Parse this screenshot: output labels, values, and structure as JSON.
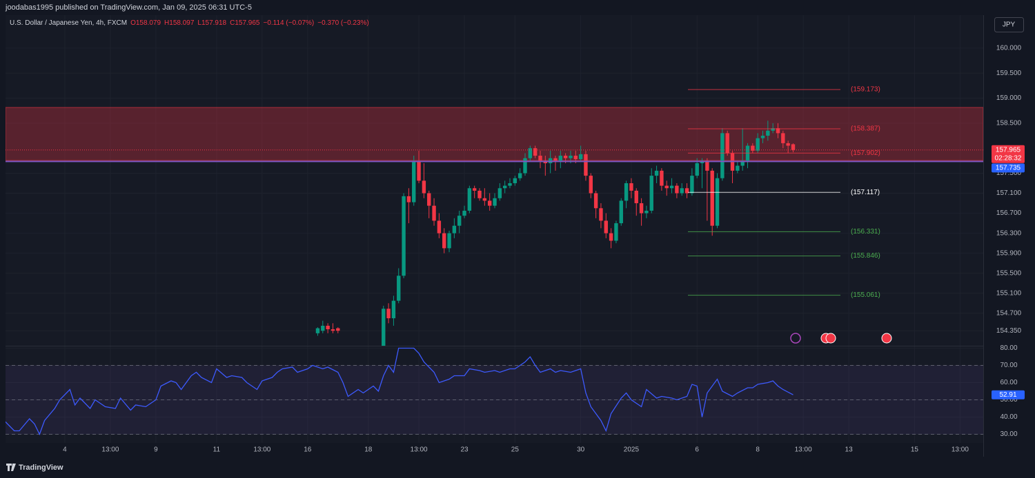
{
  "header": {
    "publisher": "joodabas1995 published on TradingView.com, Jan 09, 2025 06:31 UTC-5",
    "symbol": "U.S. Dollar / Japanese Yen, 4h, FXCM",
    "open": "O158.079",
    "high": "H158.097",
    "low": "L157.918",
    "close": "C157.965",
    "change": "−0.114 (−0.07%)",
    "change_total": "−0.370 (−0.23%)",
    "currency": "JPY"
  },
  "chart_data": [
    {
      "type": "candlestick",
      "up_color": "#089981",
      "down_color": "#f23645",
      "grid": true,
      "xlim": [
        0,
        193
      ],
      "ylim": [
        154.05,
        160.66
      ],
      "xticks": [
        {
          "value": 12,
          "label": "4"
        },
        {
          "value": 21,
          "label": "13:00"
        },
        {
          "value": 30,
          "label": "9"
        },
        {
          "value": 42,
          "label": "11"
        },
        {
          "value": 51,
          "label": "13:00"
        },
        {
          "value": 60,
          "label": "16"
        },
        {
          "value": 72,
          "label": "18"
        },
        {
          "value": 82,
          "label": "13:00"
        },
        {
          "value": 91,
          "label": "23"
        },
        {
          "value": 101,
          "label": "25"
        },
        {
          "value": 114,
          "label": "30"
        },
        {
          "value": 124,
          "label": "2025"
        },
        {
          "value": 137,
          "label": "6"
        },
        {
          "value": 149,
          "label": "8"
        },
        {
          "value": 158,
          "label": "13:00"
        },
        {
          "value": 167,
          "label": "13"
        },
        {
          "value": 180,
          "label": "15"
        },
        {
          "value": 189,
          "label": "13:00"
        }
      ],
      "yticks": [
        {
          "value": 160,
          "label": "160.000"
        },
        {
          "value": 159.5,
          "label": "159.500"
        },
        {
          "value": 159,
          "label": "159.000"
        },
        {
          "value": 158.5,
          "label": "158.500"
        },
        {
          "value": 157.5,
          "label": "157.500"
        },
        {
          "value": 157.1,
          "label": "157.100"
        },
        {
          "value": 156.7,
          "label": "156.700"
        },
        {
          "value": 156.3,
          "label": "156.300"
        },
        {
          "value": 155.9,
          "label": "155.900"
        },
        {
          "value": 155.5,
          "label": "155.500"
        },
        {
          "value": 155.1,
          "label": "155.100"
        },
        {
          "value": 154.7,
          "label": "154.700"
        },
        {
          "value": 154.35,
          "label": "154.350"
        }
      ],
      "zone": {
        "from": 157.755,
        "to": 158.815,
        "color": "#f23645"
      },
      "support": {
        "value": 157.735,
        "color": "#7e57c2",
        "tag_color": "#2962ff"
      },
      "countdown": "02:28:32",
      "levels": [
        {
          "value": 159.173,
          "label": "(159.173)",
          "color": "#f23645"
        },
        {
          "value": 158.387,
          "label": "(158.387)",
          "color": "#f23645"
        },
        {
          "value": 157.902,
          "label": "(157.902)",
          "color": "#f23645"
        },
        {
          "value": 157.117,
          "label": "(157.117)",
          "color": "#ffffff"
        },
        {
          "value": 156.331,
          "label": "(156.331)",
          "color": "#4caf50"
        },
        {
          "value": 155.846,
          "label": "(155.846)",
          "color": "#4caf50"
        },
        {
          "value": 155.061,
          "label": "(155.061)",
          "color": "#4caf50"
        }
      ],
      "candles": [
        [
          62,
          154.3,
          154.42,
          154.25,
          154.4
        ],
        [
          63,
          154.35,
          154.55,
          154.3,
          154.45
        ],
        [
          64,
          154.45,
          154.5,
          154.3,
          154.38
        ],
        [
          65,
          154.38,
          154.5,
          154.3,
          154.35
        ],
        [
          66,
          154.4,
          154.42,
          154.3,
          154.35
        ],
        [
          75,
          153.95,
          154.85,
          153.9,
          154.79
        ],
        [
          76,
          154.79,
          154.9,
          154.5,
          154.6
        ],
        [
          77,
          154.6,
          155.05,
          154.45,
          154.95
        ],
        [
          78,
          154.95,
          155.6,
          154.9,
          155.45
        ],
        [
          79,
          155.45,
          157.1,
          155.4,
          157.04
        ],
        [
          80,
          157.04,
          157.2,
          156.5,
          156.92
        ],
        [
          81,
          156.92,
          157.85,
          156.85,
          157.73
        ],
        [
          82,
          157.73,
          157.95,
          157.3,
          157.35
        ],
        [
          83,
          157.35,
          157.7,
          157.0,
          157.1
        ],
        [
          84,
          157.1,
          157.15,
          156.6,
          156.85
        ],
        [
          85,
          156.85,
          157.0,
          156.45,
          156.55
        ],
        [
          86,
          156.55,
          156.7,
          156.2,
          156.3
        ],
        [
          87,
          156.3,
          156.4,
          155.9,
          156.0
        ],
        [
          88,
          156.0,
          156.35,
          155.92,
          156.3
        ],
        [
          89,
          156.3,
          156.6,
          156.2,
          156.45
        ],
        [
          90,
          156.45,
          156.75,
          156.3,
          156.65
        ],
        [
          91,
          156.65,
          156.85,
          156.6,
          156.75
        ],
        [
          92,
          156.75,
          157.25,
          156.7,
          157.2
        ],
        [
          93,
          157.2,
          157.25,
          157.0,
          157.15
        ],
        [
          94,
          157.15,
          157.2,
          156.95,
          157.0
        ],
        [
          95,
          157.0,
          157.2,
          156.85,
          156.95
        ],
        [
          96,
          156.95,
          157.1,
          156.75,
          156.85
        ],
        [
          97,
          156.85,
          157.1,
          156.8,
          157.0
        ],
        [
          98,
          157.0,
          157.3,
          156.95,
          157.2
        ],
        [
          99,
          157.2,
          157.35,
          157.1,
          157.25
        ],
        [
          100,
          157.25,
          157.4,
          157.2,
          157.3
        ],
        [
          101,
          157.3,
          157.45,
          157.25,
          157.4
        ],
        [
          102,
          157.4,
          157.6,
          157.35,
          157.5
        ],
        [
          103,
          157.5,
          157.9,
          157.45,
          157.8
        ],
        [
          104,
          157.8,
          158.05,
          157.75,
          158.0
        ],
        [
          105,
          158.0,
          158.05,
          157.8,
          157.85
        ],
        [
          106,
          157.85,
          157.95,
          157.6,
          157.75
        ],
        [
          107,
          157.75,
          157.85,
          157.45,
          157.7
        ],
        [
          108,
          157.7,
          157.95,
          157.5,
          157.8
        ],
        [
          109,
          157.8,
          157.85,
          157.55,
          157.75
        ],
        [
          110,
          157.75,
          157.95,
          157.6,
          157.85
        ],
        [
          111,
          157.85,
          157.9,
          157.7,
          157.8
        ],
        [
          112,
          157.8,
          157.95,
          157.7,
          157.85
        ],
        [
          113,
          157.85,
          157.95,
          157.7,
          157.78
        ],
        [
          114,
          157.78,
          158.05,
          157.75,
          157.88
        ],
        [
          115,
          157.88,
          157.95,
          157.35,
          157.45
        ],
        [
          116,
          157.45,
          157.5,
          157.0,
          157.1
        ],
        [
          117,
          157.1,
          157.15,
          156.6,
          156.8
        ],
        [
          118,
          156.8,
          156.9,
          156.4,
          156.55
        ],
        [
          119,
          156.55,
          156.7,
          156.2,
          156.3
        ],
        [
          120,
          156.3,
          156.4,
          156.0,
          156.15
        ],
        [
          121,
          156.15,
          156.55,
          156.1,
          156.5
        ],
        [
          122,
          156.5,
          157.0,
          156.45,
          156.95
        ],
        [
          123,
          156.95,
          157.35,
          156.8,
          157.3
        ],
        [
          124,
          157.3,
          157.4,
          157.0,
          157.15
        ],
        [
          125,
          157.15,
          157.2,
          156.65,
          156.9
        ],
        [
          126,
          156.9,
          157.0,
          156.45,
          156.7
        ],
        [
          127,
          156.7,
          156.85,
          156.6,
          156.75
        ],
        [
          128,
          156.75,
          157.6,
          156.7,
          157.45
        ],
        [
          129,
          157.45,
          157.65,
          157.3,
          157.55
        ],
        [
          130,
          157.55,
          157.6,
          157.15,
          157.25
        ],
        [
          131,
          157.25,
          157.35,
          157.05,
          157.2
        ],
        [
          132,
          157.2,
          157.4,
          157.1,
          157.25
        ],
        [
          133,
          157.25,
          157.3,
          157.0,
          157.1
        ],
        [
          134,
          157.1,
          157.3,
          157.05,
          157.2
        ],
        [
          135,
          157.2,
          157.3,
          157.0,
          157.1
        ],
        [
          136,
          157.1,
          157.6,
          157.05,
          157.45
        ],
        [
          137,
          157.45,
          157.8,
          157.4,
          157.7
        ],
        [
          138,
          157.7,
          157.8,
          157.2,
          157.75
        ],
        [
          139,
          157.75,
          157.8,
          156.55,
          157.55
        ],
        [
          140,
          157.55,
          157.6,
          156.25,
          156.45
        ],
        [
          141,
          156.45,
          157.5,
          156.4,
          157.4
        ],
        [
          142,
          157.4,
          158.4,
          157.35,
          158.3
        ],
        [
          143,
          158.3,
          158.35,
          157.85,
          157.9
        ],
        [
          144,
          157.9,
          157.95,
          157.3,
          157.55
        ],
        [
          145,
          157.55,
          157.75,
          157.5,
          157.65
        ],
        [
          146,
          157.65,
          158.4,
          157.55,
          157.75
        ],
        [
          147,
          157.75,
          158.1,
          157.6,
          158.05
        ],
        [
          148,
          158.05,
          158.1,
          157.9,
          157.95
        ],
        [
          149,
          157.95,
          158.3,
          157.9,
          158.2
        ],
        [
          150,
          158.2,
          158.35,
          158.1,
          158.25
        ],
        [
          151,
          158.25,
          158.55,
          158.15,
          158.35
        ],
        [
          152,
          158.35,
          158.5,
          158.3,
          158.4
        ],
        [
          153,
          158.4,
          158.5,
          158.2,
          158.3
        ],
        [
          154,
          158.3,
          158.35,
          158.0,
          158.1
        ],
        [
          155,
          158.1,
          158.15,
          157.9,
          158.05
        ],
        [
          156,
          158.079,
          158.097,
          157.918,
          157.965
        ]
      ]
    },
    {
      "type": "line",
      "color": "#3d5afe",
      "tag_color": "#2962ff",
      "xlim": [
        0,
        193
      ],
      "ylim": [
        25,
        81
      ],
      "yticks": [
        {
          "value": 80,
          "label": "80.00"
        },
        {
          "value": 70,
          "label": "70.00"
        },
        {
          "value": 60,
          "label": "60.00"
        },
        {
          "value": 50,
          "label": "50.00"
        },
        {
          "value": 40,
          "label": "40.00"
        },
        {
          "value": 30,
          "label": "30.00"
        }
      ],
      "band": [
        30,
        70
      ],
      "midline": 50,
      "x": [
        0,
        2,
        3,
        5,
        6,
        7,
        8,
        10,
        11,
        13,
        14,
        15,
        17,
        18,
        20,
        22,
        23,
        25,
        26,
        28,
        30,
        31,
        33,
        34,
        35,
        37,
        38,
        39,
        41,
        42,
        44,
        45,
        47,
        48,
        50,
        51,
        53,
        54,
        55,
        57,
        58,
        60,
        61,
        63,
        64,
        66,
        67,
        68,
        70,
        71,
        73,
        74,
        75,
        76,
        77,
        78,
        80,
        81,
        82,
        83,
        85,
        86,
        88,
        89,
        91,
        92,
        94,
        95,
        97,
        98,
        100,
        101,
        103,
        104,
        105,
        106,
        108,
        109,
        110,
        112,
        114,
        115,
        116,
        118,
        119,
        120,
        122,
        123,
        124,
        126,
        127,
        129,
        130,
        132,
        133,
        135,
        136,
        137,
        138,
        139,
        141,
        142,
        144,
        145,
        147,
        148,
        149,
        151,
        152,
        153,
        154,
        156
      ],
      "values": [
        38,
        32,
        32,
        39,
        36,
        30,
        38,
        45,
        50,
        56,
        47,
        51,
        45,
        50,
        46,
        45,
        51,
        44,
        47,
        46,
        50,
        58,
        61,
        60,
        56,
        64,
        66,
        63,
        60,
        68,
        63,
        64,
        63,
        60,
        56,
        61,
        63,
        66,
        68,
        69,
        66,
        68,
        70,
        68,
        69,
        66,
        60,
        52,
        56,
        54,
        58,
        55,
        64,
        70,
        66,
        80,
        80,
        80,
        77,
        72,
        66,
        60,
        62,
        64,
        64,
        68,
        67,
        66,
        67,
        66,
        68,
        68,
        72,
        75,
        70,
        66,
        68,
        66,
        67,
        66,
        68,
        54,
        46,
        38,
        32,
        42,
        51,
        54,
        50,
        46,
        56,
        51,
        52,
        51,
        50,
        52,
        59,
        58,
        40,
        54,
        62,
        55,
        52,
        54,
        57,
        57,
        59,
        60,
        61,
        58,
        56,
        52.91
      ]
    }
  ],
  "footer": {
    "brand": "TradingView"
  }
}
